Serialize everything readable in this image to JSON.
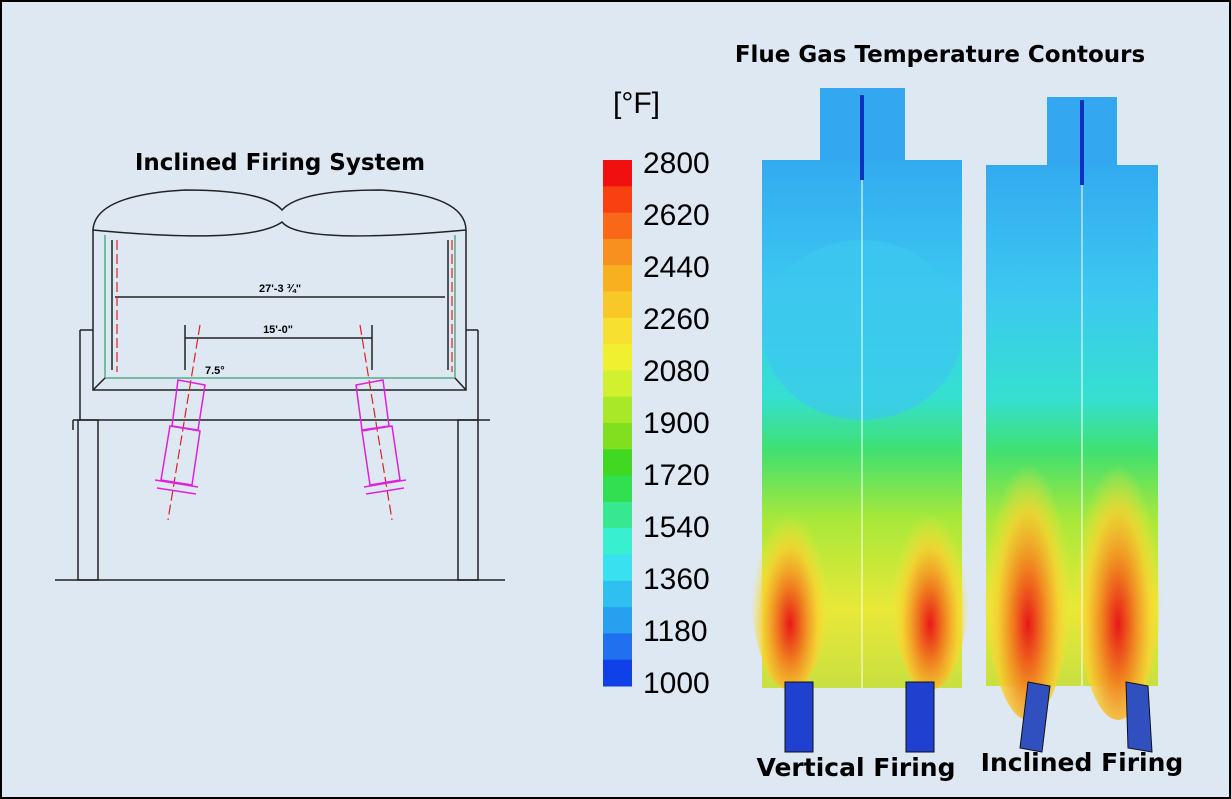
{
  "left": {
    "title": "Inclined Firing System",
    "dimensions": [
      "27'-3 ¾\"",
      "15'-0\"",
      "7.5°"
    ]
  },
  "right": {
    "title": "Flue Gas Temperature Contours",
    "unit": "[°F]",
    "scale": [
      2800,
      2620,
      2440,
      2260,
      2080,
      1900,
      1720,
      1540,
      1360,
      1180,
      1000
    ],
    "captions": [
      "Vertical Firing",
      "Inclined Firing"
    ]
  }
}
